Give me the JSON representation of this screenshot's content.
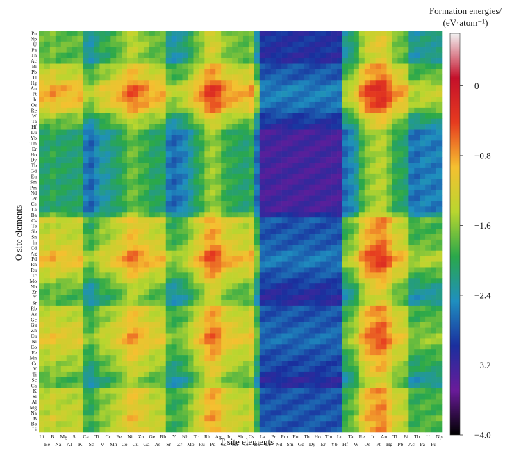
{
  "chart_data": {
    "type": "heatmap",
    "xlabel": "T site elements",
    "ylabel": "O site elements",
    "colorbar": {
      "title_line1": "Formation energies/",
      "title_line2": "(eV·atom⁻¹)",
      "range": [
        -4.0,
        0.6
      ],
      "ticks": [
        "0",
        "−0.8",
        "−1.6",
        "−2.4",
        "−3.2",
        "−4.0"
      ],
      "tick_values": [
        0,
        -0.8,
        -1.6,
        -2.4,
        -3.2,
        -4.0
      ],
      "colors": [
        "#000000",
        "#6a1b9a",
        "#1a2f9e",
        "#1f8fbf",
        "#2aa84a",
        "#b9d62f",
        "#f5c030",
        "#e63b1f",
        "#c4102a",
        "#f2f2f2"
      ]
    },
    "x_categories": [
      "Li",
      "Be",
      "B",
      "Na",
      "Mg",
      "Al",
      "Si",
      "K",
      "Ca",
      "Sc",
      "Ti",
      "V",
      "Cr",
      "Mn",
      "Fe",
      "Co",
      "Ni",
      "Cu",
      "Zn",
      "Ga",
      "Ge",
      "As",
      "Rb",
      "Sr",
      "Y",
      "Zr",
      "Nb",
      "Mo",
      "Tc",
      "Ru",
      "Rh",
      "Pd",
      "Ag",
      "Cd",
      "In",
      "Sn",
      "Sb",
      "Te",
      "Cs",
      "Ba",
      "La",
      "Ce",
      "Pr",
      "Nd",
      "Pm",
      "Sm",
      "Eu",
      "Gd",
      "Tb",
      "Dy",
      "Ho",
      "Er",
      "Tm",
      "Yb",
      "Lu",
      "Hf",
      "Ta",
      "W",
      "Re",
      "Os",
      "Ir",
      "Pt",
      "Au",
      "Hg",
      "Tl",
      "Pb",
      "Bi",
      "Ac",
      "Th",
      "Pa",
      "U",
      "Pu",
      "Np"
    ],
    "y_categories_top_to_bottom": [
      "Pu",
      "Np",
      "U",
      "Pa",
      "Th",
      "Ac",
      "Bi",
      "Pb",
      "Tl",
      "Hg",
      "Au",
      "Pt",
      "Ir",
      "Os",
      "Re",
      "W",
      "Ta",
      "Hf",
      "Lu",
      "Yb",
      "Tm",
      "Er",
      "Ho",
      "Dy",
      "Tb",
      "Gd",
      "Eu",
      "Sm",
      "Pm",
      "Nd",
      "Pr",
      "Ce",
      "La",
      "Ba",
      "Cs",
      "Te",
      "Sb",
      "Sn",
      "In",
      "Cd",
      "Ag",
      "Pd",
      "Rh",
      "Ru",
      "Tc",
      "Mo",
      "Nb",
      "Zr",
      "Y",
      "Sr",
      "Rb",
      "As",
      "Ge",
      "Ga",
      "Zn",
      "Cu",
      "Ni",
      "Co",
      "Fe",
      "Mn",
      "Cr",
      "V",
      "Ti",
      "Sc",
      "Ca",
      "K",
      "Si",
      "Al",
      "Mg",
      "Na",
      "B",
      "Be",
      "Li"
    ],
    "value_notes": "Values in eV/atom; approx −4.0 (dark) to ~0.5 (red). Highest (least negative) where either site is a late transition metal (Ni,Cu,Pd,Ag,Pt,Au,Ir,Os,Rh); lowest where T site is a lanthanide (La–Lu)."
  }
}
